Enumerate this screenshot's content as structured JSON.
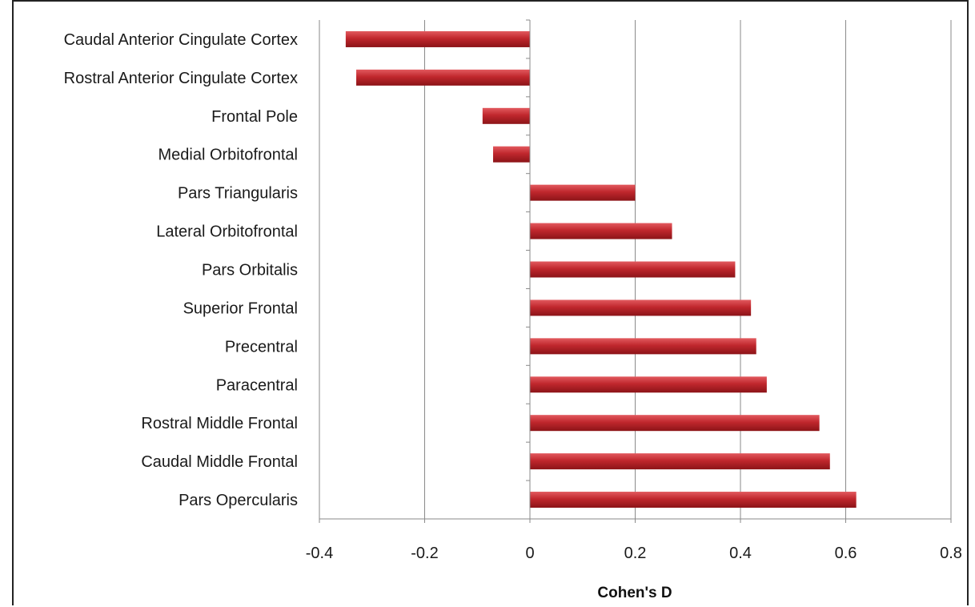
{
  "chart_data": {
    "type": "bar",
    "orientation": "horizontal",
    "categories": [
      "Caudal Anterior Cingulate Cortex",
      "Rostral Anterior Cingulate Cortex",
      "Frontal Pole",
      "Medial Orbitofrontal",
      "Pars Triangularis",
      "Lateral Orbitofrontal",
      "Pars Orbitalis",
      "Superior Frontal",
      "Precentral",
      "Paracentral",
      "Rostral Middle Frontal",
      "Caudal Middle Frontal",
      "Pars Opercularis"
    ],
    "values": [
      -0.35,
      -0.33,
      -0.09,
      -0.07,
      0.2,
      0.27,
      0.39,
      0.42,
      0.43,
      0.45,
      0.55,
      0.57,
      0.62
    ],
    "title": "",
    "xlabel": "Cohen's D",
    "ylabel": "",
    "xlim": [
      -0.4,
      0.8
    ],
    "xticks": [
      "-0.4",
      "-0.2",
      "0",
      "0.2",
      "0.4",
      "0.6",
      "0.8"
    ],
    "xtick_values": [
      -0.4,
      -0.2,
      0,
      0.2,
      0.4,
      0.6,
      0.8
    ],
    "grid": "vertical",
    "legend": "none",
    "bar_color": "#c0272d"
  }
}
